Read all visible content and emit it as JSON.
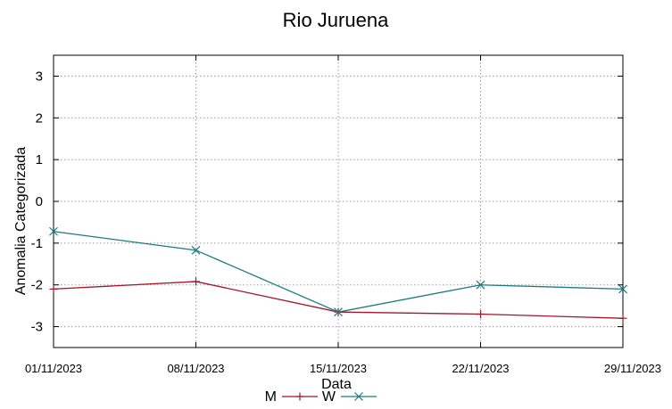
{
  "chart_data": {
    "type": "line",
    "title": "Rio Juruena",
    "xlabel": "Data",
    "ylabel": "Anomalia Categorizada",
    "x": [
      "01/11/2023",
      "08/11/2023",
      "15/11/2023",
      "22/11/2023",
      "29/11/2023"
    ],
    "yticks": [
      "3",
      "2",
      "1",
      "0",
      "-1",
      "-2",
      "-3"
    ],
    "ylim": [
      -3.5,
      3.5
    ],
    "grid": true,
    "legend_position": "bottom",
    "series": [
      {
        "name": "M",
        "color": "#a0162b",
        "marker": "plus",
        "values": [
          -2.1,
          -1.92,
          -2.65,
          -2.7,
          -2.8
        ]
      },
      {
        "name": "W",
        "color": "#1c7a80",
        "marker": "cross",
        "values": [
          -0.72,
          -1.17,
          -2.65,
          -2.0,
          -2.1
        ]
      }
    ]
  }
}
